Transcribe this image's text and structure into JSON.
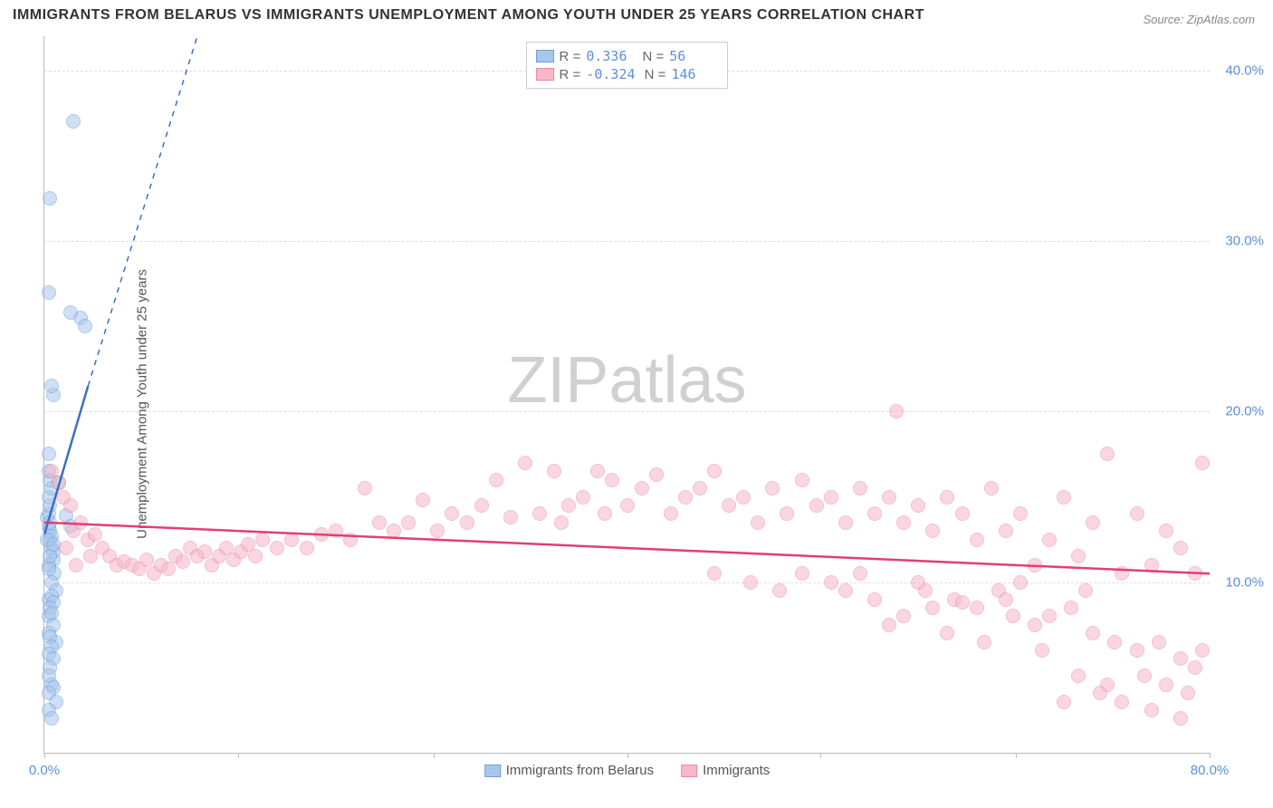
{
  "title": "IMMIGRANTS FROM BELARUS VS IMMIGRANTS UNEMPLOYMENT AMONG YOUTH UNDER 25 YEARS CORRELATION CHART",
  "source_label": "Source: ZipAtlas.com",
  "ylabel": "Unemployment Among Youth under 25 years",
  "watermark_a": "ZIP",
  "watermark_b": "atlas",
  "chart": {
    "type": "scatter",
    "xlim": [
      0,
      80
    ],
    "ylim": [
      0,
      42
    ],
    "xticks": [
      0,
      13.3,
      26.7,
      40,
      53.3,
      66.7,
      80
    ],
    "xtick_labels": [
      "0.0%",
      "",
      "",
      "",
      "",
      "",
      "80.0%"
    ],
    "yticks": [
      10,
      20,
      30,
      40
    ],
    "ytick_labels": [
      "10.0%",
      "20.0%",
      "30.0%",
      "40.0%"
    ],
    "grid_color": "#dddddd",
    "axis_color": "#bbbbbb",
    "tick_label_color": "#5b8fd6",
    "background_color": "#ffffff",
    "point_radius": 8,
    "point_opacity": 0.55,
    "series": [
      {
        "name": "Immigrants from Belarus",
        "fill_color": "#a8c6ec",
        "stroke_color": "#6f9fd8",
        "trend_color": "#3c6fbf",
        "trend_solid": {
          "x1": 0,
          "y1": 12.8,
          "x2": 3.0,
          "y2": 21.5
        },
        "trend_dashed": {
          "x1": 3.0,
          "y1": 21.5,
          "x2": 10.5,
          "y2": 42
        },
        "R": "0.336",
        "N": "56",
        "points": [
          [
            0.3,
            13.2
          ],
          [
            0.4,
            12.5
          ],
          [
            0.2,
            13.8
          ],
          [
            0.5,
            12.0
          ],
          [
            0.6,
            11.3
          ],
          [
            0.3,
            14.0
          ],
          [
            0.4,
            13.0
          ],
          [
            0.5,
            12.7
          ],
          [
            0.2,
            12.5
          ],
          [
            0.6,
            11.8
          ],
          [
            0.3,
            11.0
          ],
          [
            0.4,
            11.5
          ],
          [
            0.7,
            10.5
          ],
          [
            0.5,
            10.0
          ],
          [
            0.3,
            10.8
          ],
          [
            0.6,
            12.2
          ],
          [
            0.4,
            13.5
          ],
          [
            0.8,
            9.5
          ],
          [
            0.3,
            9.0
          ],
          [
            0.5,
            9.2
          ],
          [
            0.6,
            8.8
          ],
          [
            0.4,
            8.5
          ],
          [
            0.3,
            8.0
          ],
          [
            0.5,
            8.2
          ],
          [
            0.6,
            7.5
          ],
          [
            0.3,
            7.0
          ],
          [
            0.8,
            6.5
          ],
          [
            0.4,
            6.8
          ],
          [
            0.5,
            6.2
          ],
          [
            0.3,
            5.8
          ],
          [
            0.6,
            5.5
          ],
          [
            0.4,
            5.0
          ],
          [
            0.3,
            4.5
          ],
          [
            0.5,
            4.0
          ],
          [
            0.6,
            3.8
          ],
          [
            0.3,
            3.5
          ],
          [
            0.8,
            3.0
          ],
          [
            0.3,
            2.5
          ],
          [
            0.5,
            2.0
          ],
          [
            0.4,
            14.5
          ],
          [
            0.3,
            15.0
          ],
          [
            0.5,
            15.5
          ],
          [
            0.4,
            16.0
          ],
          [
            0.3,
            16.5
          ],
          [
            1.0,
            15.8
          ],
          [
            0.3,
            17.5
          ],
          [
            0.6,
            21.0
          ],
          [
            0.5,
            21.5
          ],
          [
            0.3,
            27.0
          ],
          [
            2.5,
            25.5
          ],
          [
            2.8,
            25.0
          ],
          [
            1.8,
            25.8
          ],
          [
            0.4,
            32.5
          ],
          [
            2.0,
            37.0
          ],
          [
            1.5,
            13.9
          ],
          [
            1.8,
            13.3
          ]
        ]
      },
      {
        "name": "Immigrants",
        "fill_color": "#f6b8c8",
        "stroke_color": "#e88aa5",
        "trend_color": "#e13f72",
        "trend_solid": {
          "x1": 0,
          "y1": 13.5,
          "x2": 80,
          "y2": 10.5
        },
        "R": "-0.324",
        "N": "146",
        "points": [
          [
            0.5,
            16.5
          ],
          [
            1.0,
            15.8
          ],
          [
            1.3,
            15.0
          ],
          [
            1.8,
            14.5
          ],
          [
            2.0,
            13.0
          ],
          [
            2.5,
            13.5
          ],
          [
            3.0,
            12.5
          ],
          [
            3.5,
            12.8
          ],
          [
            4.0,
            12.0
          ],
          [
            4.5,
            11.5
          ],
          [
            5.0,
            11.0
          ],
          [
            5.5,
            11.2
          ],
          [
            6.0,
            11.0
          ],
          [
            6.5,
            10.8
          ],
          [
            7.0,
            11.3
          ],
          [
            7.5,
            10.5
          ],
          [
            8.0,
            11.0
          ],
          [
            8.5,
            10.8
          ],
          [
            9.0,
            11.5
          ],
          [
            9.5,
            11.2
          ],
          [
            10.0,
            12.0
          ],
          [
            10.5,
            11.5
          ],
          [
            11.0,
            11.8
          ],
          [
            11.5,
            11.0
          ],
          [
            12.0,
            11.5
          ],
          [
            12.5,
            12.0
          ],
          [
            13.0,
            11.3
          ],
          [
            13.5,
            11.8
          ],
          [
            14.0,
            12.2
          ],
          [
            14.5,
            11.5
          ],
          [
            15.0,
            12.5
          ],
          [
            16.0,
            12.0
          ],
          [
            17.0,
            12.5
          ],
          [
            18.0,
            12.0
          ],
          [
            19.0,
            12.8
          ],
          [
            20.0,
            13.0
          ],
          [
            21.0,
            12.5
          ],
          [
            22.0,
            15.5
          ],
          [
            23.0,
            13.5
          ],
          [
            24.0,
            13.0
          ],
          [
            25.0,
            13.5
          ],
          [
            26.0,
            14.8
          ],
          [
            27.0,
            13.0
          ],
          [
            28.0,
            14.0
          ],
          [
            29.0,
            13.5
          ],
          [
            30.0,
            14.5
          ],
          [
            31.0,
            16.0
          ],
          [
            32.0,
            13.8
          ],
          [
            33.0,
            17.0
          ],
          [
            34.0,
            14.0
          ],
          [
            35.0,
            16.5
          ],
          [
            35.5,
            13.5
          ],
          [
            36.0,
            14.5
          ],
          [
            37.0,
            15.0
          ],
          [
            38.0,
            16.5
          ],
          [
            38.5,
            14.0
          ],
          [
            39.0,
            16.0
          ],
          [
            40.0,
            14.5
          ],
          [
            41.0,
            15.5
          ],
          [
            42.0,
            16.3
          ],
          [
            43.0,
            14.0
          ],
          [
            44.0,
            15.0
          ],
          [
            45.0,
            15.5
          ],
          [
            46.0,
            16.5
          ],
          [
            47.0,
            14.5
          ],
          [
            48.0,
            15.0
          ],
          [
            49.0,
            13.5
          ],
          [
            50.0,
            15.5
          ],
          [
            51.0,
            14.0
          ],
          [
            52.0,
            16.0
          ],
          [
            53.0,
            14.5
          ],
          [
            54.0,
            15.0
          ],
          [
            55.0,
            13.5
          ],
          [
            56.0,
            15.5
          ],
          [
            57.0,
            14.0
          ],
          [
            58.0,
            15.0
          ],
          [
            58.5,
            20.0
          ],
          [
            59.0,
            13.5
          ],
          [
            60.0,
            14.5
          ],
          [
            61.0,
            13.0
          ],
          [
            62.0,
            15.0
          ],
          [
            63.0,
            14.0
          ],
          [
            64.0,
            12.5
          ],
          [
            65.0,
            15.5
          ],
          [
            66.0,
            13.0
          ],
          [
            67.0,
            14.0
          ],
          [
            68.0,
            11.0
          ],
          [
            69.0,
            12.5
          ],
          [
            70.0,
            15.0
          ],
          [
            71.0,
            11.5
          ],
          [
            72.0,
            13.5
          ],
          [
            73.0,
            17.5
          ],
          [
            74.0,
            10.5
          ],
          [
            75.0,
            14.0
          ],
          [
            76.0,
            11.0
          ],
          [
            77.0,
            13.0
          ],
          [
            78.0,
            12.0
          ],
          [
            79.0,
            10.5
          ],
          [
            60.5,
            9.5
          ],
          [
            62.5,
            9.0
          ],
          [
            64.0,
            8.5
          ],
          [
            66.5,
            8.0
          ],
          [
            68.0,
            7.5
          ],
          [
            70.5,
            8.5
          ],
          [
            72.0,
            7.0
          ],
          [
            73.5,
            6.5
          ],
          [
            75.0,
            6.0
          ],
          [
            76.5,
            6.5
          ],
          [
            78.0,
            5.5
          ],
          [
            79.0,
            5.0
          ],
          [
            71.0,
            4.5
          ],
          [
            73.0,
            4.0
          ],
          [
            75.5,
            4.5
          ],
          [
            77.0,
            4.0
          ],
          [
            78.5,
            3.5
          ],
          [
            70.0,
            3.0
          ],
          [
            72.5,
            3.5
          ],
          [
            74.0,
            3.0
          ],
          [
            76.0,
            2.5
          ],
          [
            78.0,
            2.0
          ],
          [
            63.0,
            8.8
          ],
          [
            65.5,
            9.5
          ],
          [
            67.0,
            10.0
          ],
          [
            69.0,
            8.0
          ],
          [
            71.5,
            9.5
          ],
          [
            59.0,
            8.0
          ],
          [
            61.0,
            8.5
          ],
          [
            57.0,
            9.0
          ],
          [
            55.0,
            9.5
          ],
          [
            58.0,
            7.5
          ],
          [
            60.0,
            10.0
          ],
          [
            62.0,
            7.0
          ],
          [
            64.5,
            6.5
          ],
          [
            66.0,
            9.0
          ],
          [
            68.5,
            6.0
          ],
          [
            56.0,
            10.5
          ],
          [
            54.0,
            10.0
          ],
          [
            52.0,
            10.5
          ],
          [
            50.5,
            9.5
          ],
          [
            48.5,
            10.0
          ],
          [
            46.0,
            10.5
          ],
          [
            79.5,
            6.0
          ],
          [
            79.5,
            17.0
          ],
          [
            1.5,
            12.0
          ],
          [
            2.2,
            11.0
          ],
          [
            3.2,
            11.5
          ]
        ]
      }
    ]
  },
  "legend_bottom": [
    {
      "label": "Immigrants from Belarus",
      "fill": "#a8c6ec",
      "stroke": "#6f9fd8"
    },
    {
      "label": "Immigrants",
      "fill": "#f6b8c8",
      "stroke": "#e88aa5"
    }
  ]
}
